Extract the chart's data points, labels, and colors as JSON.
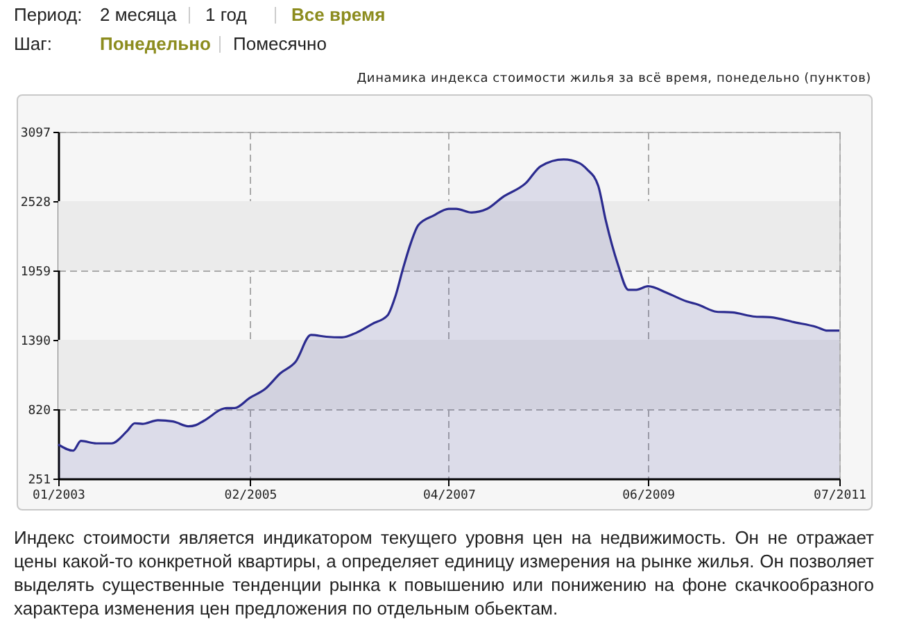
{
  "chart_data": {
    "type": "area",
    "title": "Динамика индекса стоимости жилья за всё время, понедельно (пунктов)",
    "annotations": [
      "Период:",
      "2 месяца",
      "1 год",
      "Все время",
      "Шаг:",
      "Понедельно",
      "Помесячно",
      "Индекс стоимости является индикатором текущего уровня цен на недвижимость. Он не отражает цены какой-то конкретной квартиры, а определяет единицу измерения на рынке жилья. Он позволяет выделять существенные тенденции рынка к повышению или понижению на фоне скачкообразного характера изменения цен предложения по отдельным обьектам."
    ],
    "x": [
      "2003-01",
      "2003-03",
      "2003-04",
      "2003-06",
      "2003-08",
      "2003-10",
      "2003-11",
      "2003-12",
      "2004-02",
      "2004-04",
      "2004-06",
      "2004-07",
      "2004-08",
      "2004-11",
      "2004-12",
      "2005-02",
      "2005-04",
      "2005-06",
      "2005-08",
      "2005-10",
      "2005-12",
      "2006-02",
      "2006-04",
      "2006-06",
      "2006-08",
      "2006-09",
      "2006-10",
      "2006-11",
      "2006-12",
      "2007-02",
      "2007-04",
      "2007-05",
      "2007-07",
      "2007-09",
      "2007-11",
      "2008-02",
      "2008-04",
      "2008-07",
      "2008-09",
      "2008-10",
      "2008-11-15",
      "2008-12-15",
      "2009-02",
      "2009-03-15",
      "2009-04-15",
      "2009-06",
      "2009-08-15",
      "2009-11",
      "2009-12-15",
      "2010-03",
      "2010-05",
      "2010-08",
      "2010-10",
      "2011-01",
      "2011-04",
      "2011-05-15",
      "2011-07"
    ],
    "series": [
      {
        "color": "#2b2b8f",
        "values": [
          530,
          480,
          560,
          540,
          540,
          640,
          705,
          700,
          730,
          720,
          680,
          690,
          725,
          830,
          830,
          915,
          985,
          1115,
          1210,
          1430,
          1415,
          1410,
          1450,
          1520,
          1590,
          1745,
          1970,
          2180,
          2330,
          2410,
          2465,
          2465,
          2435,
          2465,
          2560,
          2675,
          2815,
          2870,
          2840,
          2790,
          2655,
          2370,
          2010,
          1800,
          1800,
          1830,
          1775,
          1705,
          1680,
          1620,
          1615,
          1580,
          1575,
          1535,
          1495,
          1465,
          1465
        ]
      }
    ],
    "xlim": [
      "2003-01",
      "2011-07"
    ],
    "xticks": [
      {
        "value": "2003-01",
        "label": "01/2003"
      },
      {
        "value": "2005-02",
        "label": "02/2005"
      },
      {
        "value": "2007-04",
        "label": "04/2007"
      },
      {
        "value": "2009-06",
        "label": "06/2009"
      },
      {
        "value": "2011-07",
        "label": "07/2011"
      }
    ],
    "ylim": [
      251,
      3097
    ],
    "yticks": [
      251,
      820,
      1390,
      1959,
      2528,
      3097
    ],
    "grid": true,
    "line_style": "solid",
    "bands": [
      {
        "axis": "y",
        "from": 820,
        "to": 1390,
        "color": "#ebebeb"
      },
      {
        "axis": "y",
        "from": 1959,
        "to": 2528,
        "color": "#ebebeb"
      }
    ]
  }
}
